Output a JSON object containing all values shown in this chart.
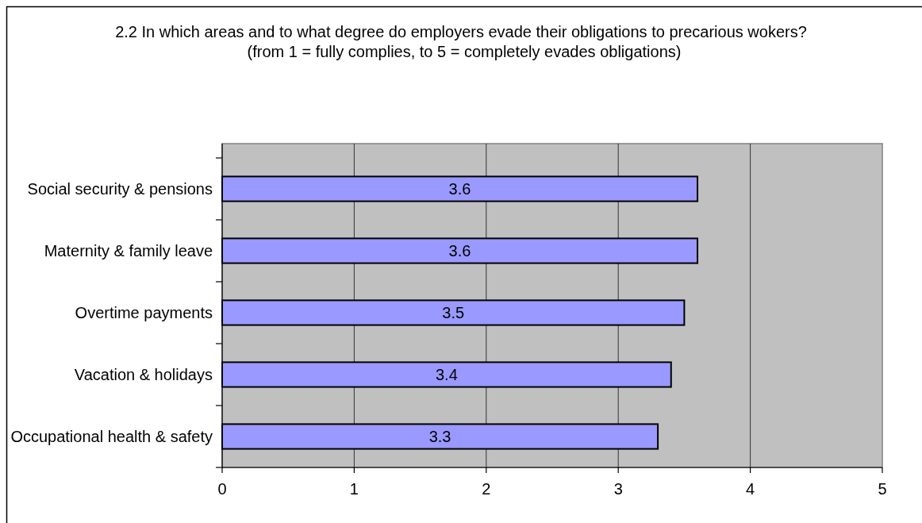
{
  "chart_data": {
    "type": "bar",
    "orientation": "horizontal",
    "title": "2.2 In which areas and to what degree do employers evade their obligations to precarious wokers?",
    "subtitle": "(from 1 = fully complies, to 5 = completely evades obligations)",
    "categories": [
      "Social security & pensions",
      "Maternity & family leave",
      "Overtime payments",
      "Vacation & holidays",
      "Occupational health & safety"
    ],
    "values": [
      3.6,
      3.6,
      3.5,
      3.4,
      3.3
    ],
    "color": "#9999ff",
    "xlim": [
      0,
      5
    ],
    "xticks": [
      0,
      1,
      2,
      3,
      4,
      5
    ],
    "grid": "x",
    "data_labels": true
  }
}
